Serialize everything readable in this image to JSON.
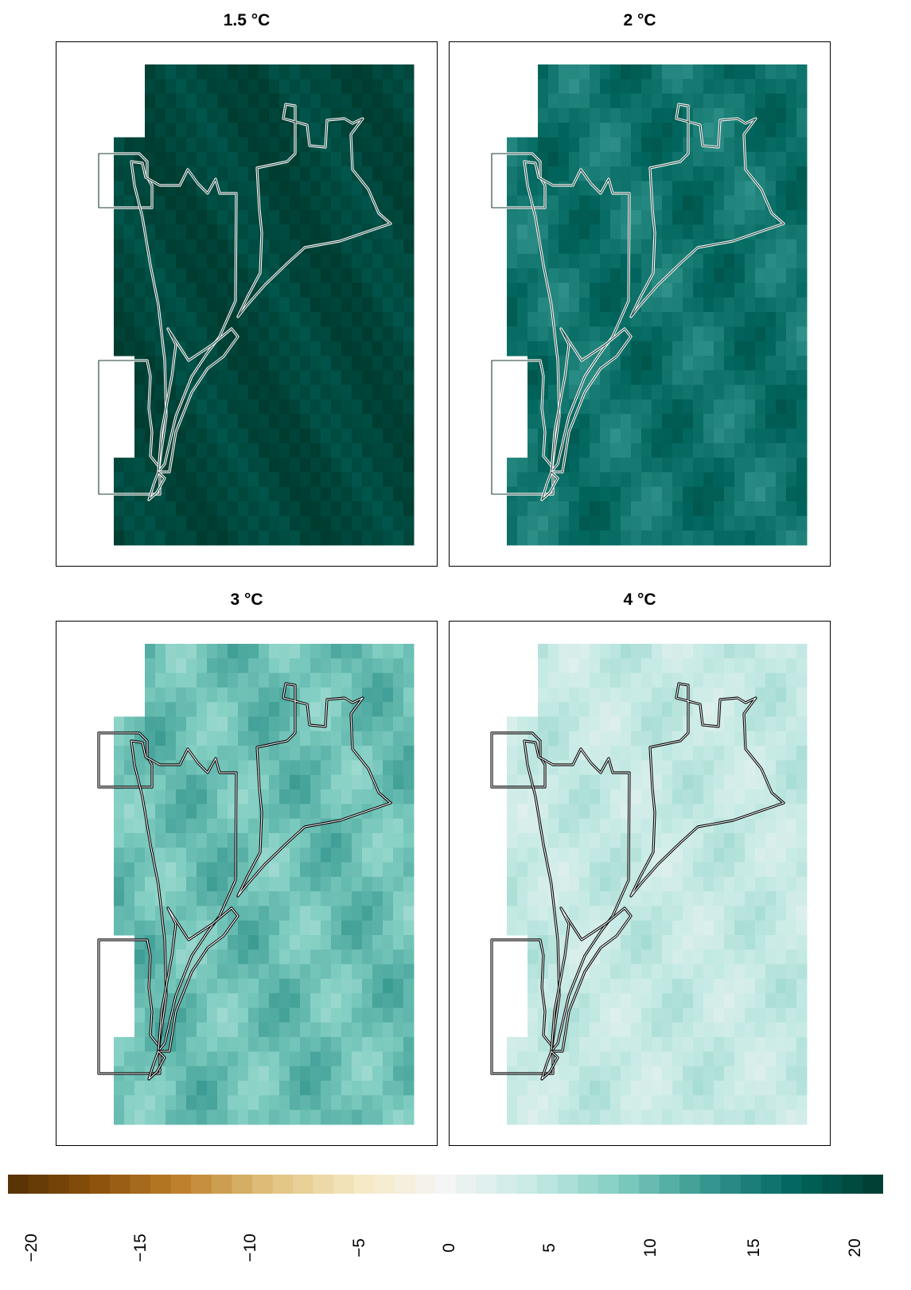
{
  "chart_data": {
    "type": "heatmap",
    "panels": [
      {
        "title": "1.5 °C",
        "value": 19,
        "variation": [
          0,
          1,
          1.5
        ]
      },
      {
        "title": "2 °C",
        "value": 15,
        "variation": [
          1,
          1.5,
          1
        ]
      },
      {
        "title": "3 °C",
        "value": 9,
        "variation": [
          1,
          1.5,
          1.2
        ]
      },
      {
        "title": "4 °C",
        "value": 4,
        "variation": [
          0.8,
          1,
          1
        ]
      }
    ],
    "colorbar": {
      "range": [
        -20,
        20
      ],
      "ticks": [
        "−20",
        "−15",
        "−10",
        "−5",
        "0",
        "5",
        "10",
        "15",
        "20"
      ],
      "colors": [
        "#543005",
        "#8c510a",
        "#bf812d",
        "#dfc27d",
        "#f6e8c3",
        "#f5f5f5",
        "#c7eae5",
        "#80cdc1",
        "#35978f",
        "#01665e",
        "#003c30"
      ]
    },
    "outline_colors": {
      "dark": "#ffffff",
      "light": "#000000"
    }
  }
}
